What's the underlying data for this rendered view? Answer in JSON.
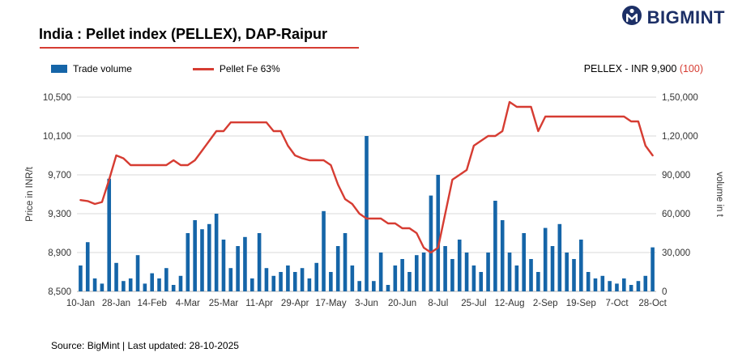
{
  "header": {
    "title": "India : Pellet index (PELLEX), DAP-Raipur",
    "brand": "BIGMINT"
  },
  "legend": {
    "bar_label": "Trade volume",
    "line_label": "Pellet Fe 63%"
  },
  "pellex_badge": {
    "main": "PELLEX - INR 9,900 ",
    "change": "(100)"
  },
  "footer": {
    "source": "Source: BigMint | Last updated: 28-10-2025"
  },
  "colors": {
    "bar": "#1565a8",
    "line": "#d63c32",
    "accent_red": "#d63c32",
    "brand_navy": "#1c2f66",
    "grid": "#d9d9d9",
    "axis_text": "#333333"
  },
  "chart_data": {
    "type": "bar+line",
    "title": "India : Pellet index (PELLEX), DAP-Raipur",
    "label_every": 5,
    "x_labels": [
      "10-Jan",
      "28-Jan",
      "14-Feb",
      "4-Mar",
      "25-Mar",
      "11-Apr",
      "29-Apr",
      "17-May",
      "3-Jun",
      "20-Jun",
      "8-Jul",
      "25-Jul",
      "12-Aug",
      "2-Sep",
      "19-Sep",
      "7-Oct",
      "28-Oct"
    ],
    "left_axis": {
      "label": "Price in INR/t",
      "min": 8500,
      "max": 10500,
      "ticks": [
        "8,500",
        "8,900",
        "9,300",
        "9,700",
        "10,100",
        "10,500"
      ]
    },
    "right_axis": {
      "label": "volume in t",
      "min": 0,
      "max": 150000,
      "ticks": [
        "0",
        "30,000",
        "60,000",
        "90,000",
        "1,20,000",
        "1,50,000"
      ]
    },
    "series": [
      {
        "name": "Trade volume",
        "type": "bar",
        "axis": "right",
        "values": [
          20000,
          38000,
          10000,
          6000,
          87000,
          22000,
          8000,
          10000,
          28000,
          6000,
          14000,
          10000,
          18000,
          5000,
          12000,
          45000,
          55000,
          48000,
          52000,
          60000,
          40000,
          18000,
          35000,
          42000,
          10000,
          45000,
          18000,
          12000,
          15000,
          20000,
          15000,
          18000,
          10000,
          22000,
          62000,
          15000,
          35000,
          45000,
          20000,
          8000,
          120000,
          8000,
          30000,
          5000,
          20000,
          25000,
          15000,
          28000,
          30000,
          74000,
          90000,
          35000,
          25000,
          40000,
          30000,
          20000,
          15000,
          30000,
          70000,
          55000,
          30000,
          20000,
          45000,
          25000,
          15000,
          49000,
          35000,
          52000,
          30000,
          25000,
          40000,
          15000,
          10000,
          12000,
          8000,
          6000,
          10000,
          5000,
          8000,
          12000,
          34000
        ]
      },
      {
        "name": "Pellet Fe 63%",
        "type": "line",
        "axis": "left",
        "values": [
          9440,
          9430,
          9400,
          9420,
          9650,
          9900,
          9870,
          9800,
          9800,
          9800,
          9800,
          9800,
          9800,
          9850,
          9800,
          9800,
          9850,
          9950,
          10050,
          10150,
          10150,
          10240,
          10240,
          10240,
          10240,
          10240,
          10240,
          10150,
          10150,
          10000,
          9900,
          9870,
          9850,
          9850,
          9850,
          9800,
          9600,
          9450,
          9400,
          9300,
          9250,
          9250,
          9250,
          9200,
          9200,
          9150,
          9150,
          9100,
          8950,
          8900,
          8950,
          9300,
          9650,
          9700,
          9750,
          10000,
          10050,
          10100,
          10100,
          10150,
          10450,
          10400,
          10400,
          10400,
          10150,
          10300,
          10300,
          10300,
          10300,
          10300,
          10300,
          10300,
          10300,
          10300,
          10300,
          10300,
          10300,
          10250,
          10250,
          10000,
          9900
        ]
      }
    ]
  }
}
